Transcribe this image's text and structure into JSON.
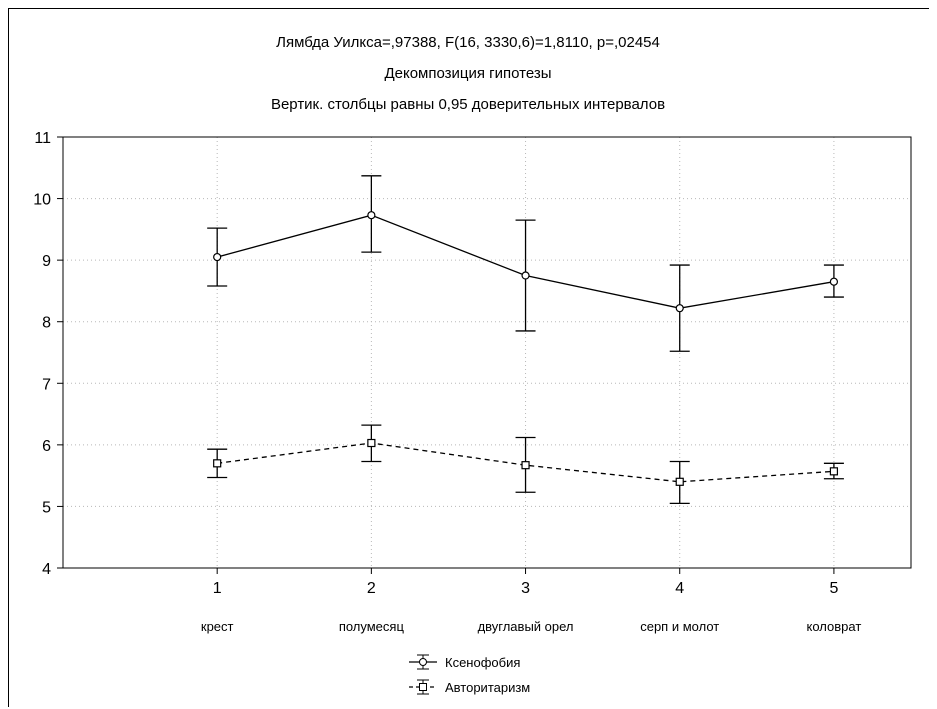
{
  "chart_data": {
    "type": "line",
    "title_lines": [
      "Лямбда Уилкса=,97388, F(16, 3330,6)=1,8110, p=,02454",
      "Декомпозиция гипотезы",
      "Вертик. столбцы равны 0,95 доверительных интервалов"
    ],
    "xlabel": "",
    "ylabel": "",
    "x": [
      1,
      2,
      3,
      4,
      5
    ],
    "categories": [
      "крест",
      "полумесяц",
      "двуглавый орел",
      "серп и молот",
      "коловрат"
    ],
    "ylim": [
      4,
      11
    ],
    "yticks": [
      4,
      5,
      6,
      7,
      8,
      9,
      10,
      11
    ],
    "grid": true,
    "legend_position": "bottom-center",
    "series": [
      {
        "name": "Ксенофобия",
        "style": "solid",
        "marker": "circle",
        "values": [
          9.05,
          9.73,
          8.75,
          8.22,
          8.65
        ],
        "ci_low": [
          8.58,
          9.13,
          7.85,
          7.52,
          8.4
        ],
        "ci_high": [
          9.52,
          10.37,
          9.65,
          8.92,
          8.92
        ]
      },
      {
        "name": "Авторитаризм",
        "style": "dashed",
        "marker": "square",
        "values": [
          5.7,
          6.03,
          5.67,
          5.4,
          5.57
        ],
        "ci_low": [
          5.47,
          5.73,
          5.23,
          5.05,
          5.45
        ],
        "ci_high": [
          5.93,
          6.32,
          6.12,
          5.73,
          5.7
        ]
      }
    ]
  }
}
